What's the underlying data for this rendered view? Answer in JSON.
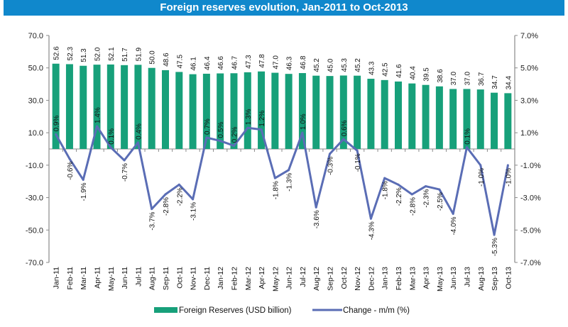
{
  "chart_data": {
    "type": "bar",
    "title": "Foreign reserves evolution, Jan-2011 to Oct-2013",
    "categories": [
      "Jan-11",
      "Feb-11",
      "Mar-11",
      "Apr-11",
      "May-11",
      "Jun-11",
      "Jul-11",
      "Aug-11",
      "Sep-11",
      "Oct-11",
      "Nov-11",
      "Dec-11",
      "Jan-12",
      "Feb-12",
      "Mar-12",
      "Apr-12",
      "May-12",
      "Jun-12",
      "Jul-12",
      "Aug-12",
      "Sep-12",
      "Oct-12",
      "Nov-12",
      "Dec-12",
      "Jan-13",
      "Feb-13",
      "Mar-13",
      "Apr-13",
      "May-13",
      "Jun-13",
      "Jul-13",
      "Aug-13",
      "Sep-13",
      "Oct-13"
    ],
    "series": [
      {
        "name": "Foreign Reserves (USD billion)",
        "type": "bar",
        "axis": "left",
        "color": "#17a07a",
        "values": [
          52.6,
          52.3,
          51.3,
          52.0,
          52.1,
          51.7,
          51.9,
          50.0,
          48.6,
          47.5,
          46.1,
          46.4,
          46.6,
          46.7,
          47.3,
          47.8,
          47.0,
          46.3,
          46.8,
          45.2,
          45.0,
          45.3,
          45.2,
          43.3,
          42.5,
          41.6,
          40.4,
          39.5,
          38.6,
          37.0,
          37.0,
          36.7,
          34.7,
          34.4
        ],
        "labels": [
          "52.6",
          "52.3",
          "51.3",
          "52.0",
          "52.1",
          "51.7",
          "51.9",
          "50.0",
          "48.6",
          "47.5",
          "46.1",
          "46.4",
          "46.6",
          "46.7",
          "47.3",
          "47.8",
          "47.0",
          "46.3",
          "46.8",
          "45.2",
          "45.0",
          "45.3",
          "45.2",
          "43.3",
          "42.5",
          "41.6",
          "40.4",
          "39.5",
          "38.6",
          "37.0",
          "37.0",
          "36.7",
          "34.7",
          "34.4"
        ]
      },
      {
        "name": "Change - m/m (%)",
        "type": "line",
        "axis": "right",
        "color": "#5a6db5",
        "values": [
          0.9,
          -0.6,
          -1.9,
          1.4,
          0.1,
          -0.7,
          0.4,
          -3.7,
          -2.8,
          -2.2,
          -3.1,
          0.7,
          0.5,
          0.2,
          1.3,
          1.2,
          -1.8,
          -1.3,
          1.0,
          -3.6,
          -0.3,
          0.6,
          -0.1,
          -4.3,
          -1.8,
          -2.2,
          -2.8,
          -2.3,
          -2.5,
          -4.0,
          0.1,
          -1.0,
          -5.3,
          -1.0
        ],
        "labels": [
          "0.9%",
          "-0.6%",
          "-1.9%",
          "1.4%",
          "0.1%",
          "-0.7%",
          "0.4%",
          "-3.7%",
          "-2.8%",
          "-2.2%",
          "-3.1%",
          "0.7%",
          "0.5%",
          "0.2%",
          "1.3%",
          "1.2%",
          "-1.8%",
          "-1.3%",
          "1.0%",
          "-3.6%",
          "-0.3%",
          "0.6%",
          "-0.1%",
          "-4.3%",
          "-1.8%",
          "-2.2%",
          "-2.8%",
          "-2.3%",
          "-2.5%",
          "-4.0%",
          "0.1%",
          "-1.0%",
          "-5.3%",
          "-1.0%"
        ]
      }
    ],
    "y_left": {
      "range": [
        -70,
        70
      ],
      "ticks": [
        "70.0",
        "50.0",
        "30.0",
        "10.0",
        "-10.0",
        "-30.0",
        "-50.0",
        "-70.0"
      ],
      "tick_values": [
        70,
        50,
        30,
        10,
        -10,
        -30,
        -50,
        -70
      ]
    },
    "y_right": {
      "range": [
        -7,
        7
      ],
      "ticks": [
        "7.0%",
        "5.0%",
        "3.0%",
        "1.0%",
        "-1.0%",
        "-3.0%",
        "-5.0%",
        "-7.0%"
      ],
      "tick_values": [
        7,
        5,
        3,
        1,
        -1,
        -3,
        -5,
        -7
      ]
    },
    "xlabel": "",
    "ylabel": "",
    "grid": false,
    "legend": {
      "position": "bottom",
      "entries": [
        "Foreign Reserves (USD billion)",
        "Change - m/m (%)"
      ]
    },
    "title_bar_color": "#1088cc"
  }
}
